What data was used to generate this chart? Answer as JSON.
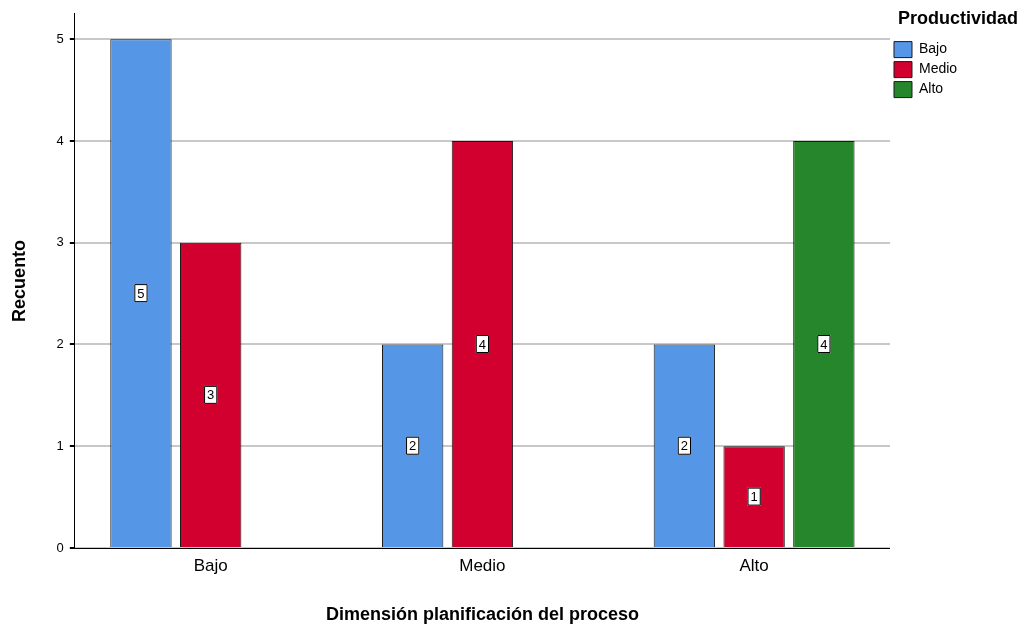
{
  "chart_data": {
    "type": "bar",
    "xlabel": "Dimensión planificación del proceso",
    "ylabel": "Recuento",
    "legend_title": "Productividad",
    "categories": [
      "Bajo",
      "Medio",
      "Alto"
    ],
    "series": [
      {
        "name": "Bajo",
        "color": "#5596e6",
        "values": [
          5,
          2,
          2
        ]
      },
      {
        "name": "Medio",
        "color": "#d1002f",
        "values": [
          3,
          4,
          1
        ]
      },
      {
        "name": "Alto",
        "color": "#26862b",
        "values": [
          null,
          null,
          4
        ]
      }
    ],
    "ylim": [
      0,
      5.25
    ],
    "yticks": [
      0,
      1,
      2,
      3,
      4,
      5
    ],
    "grid": "y",
    "legend": "top right",
    "data_labels": true
  }
}
